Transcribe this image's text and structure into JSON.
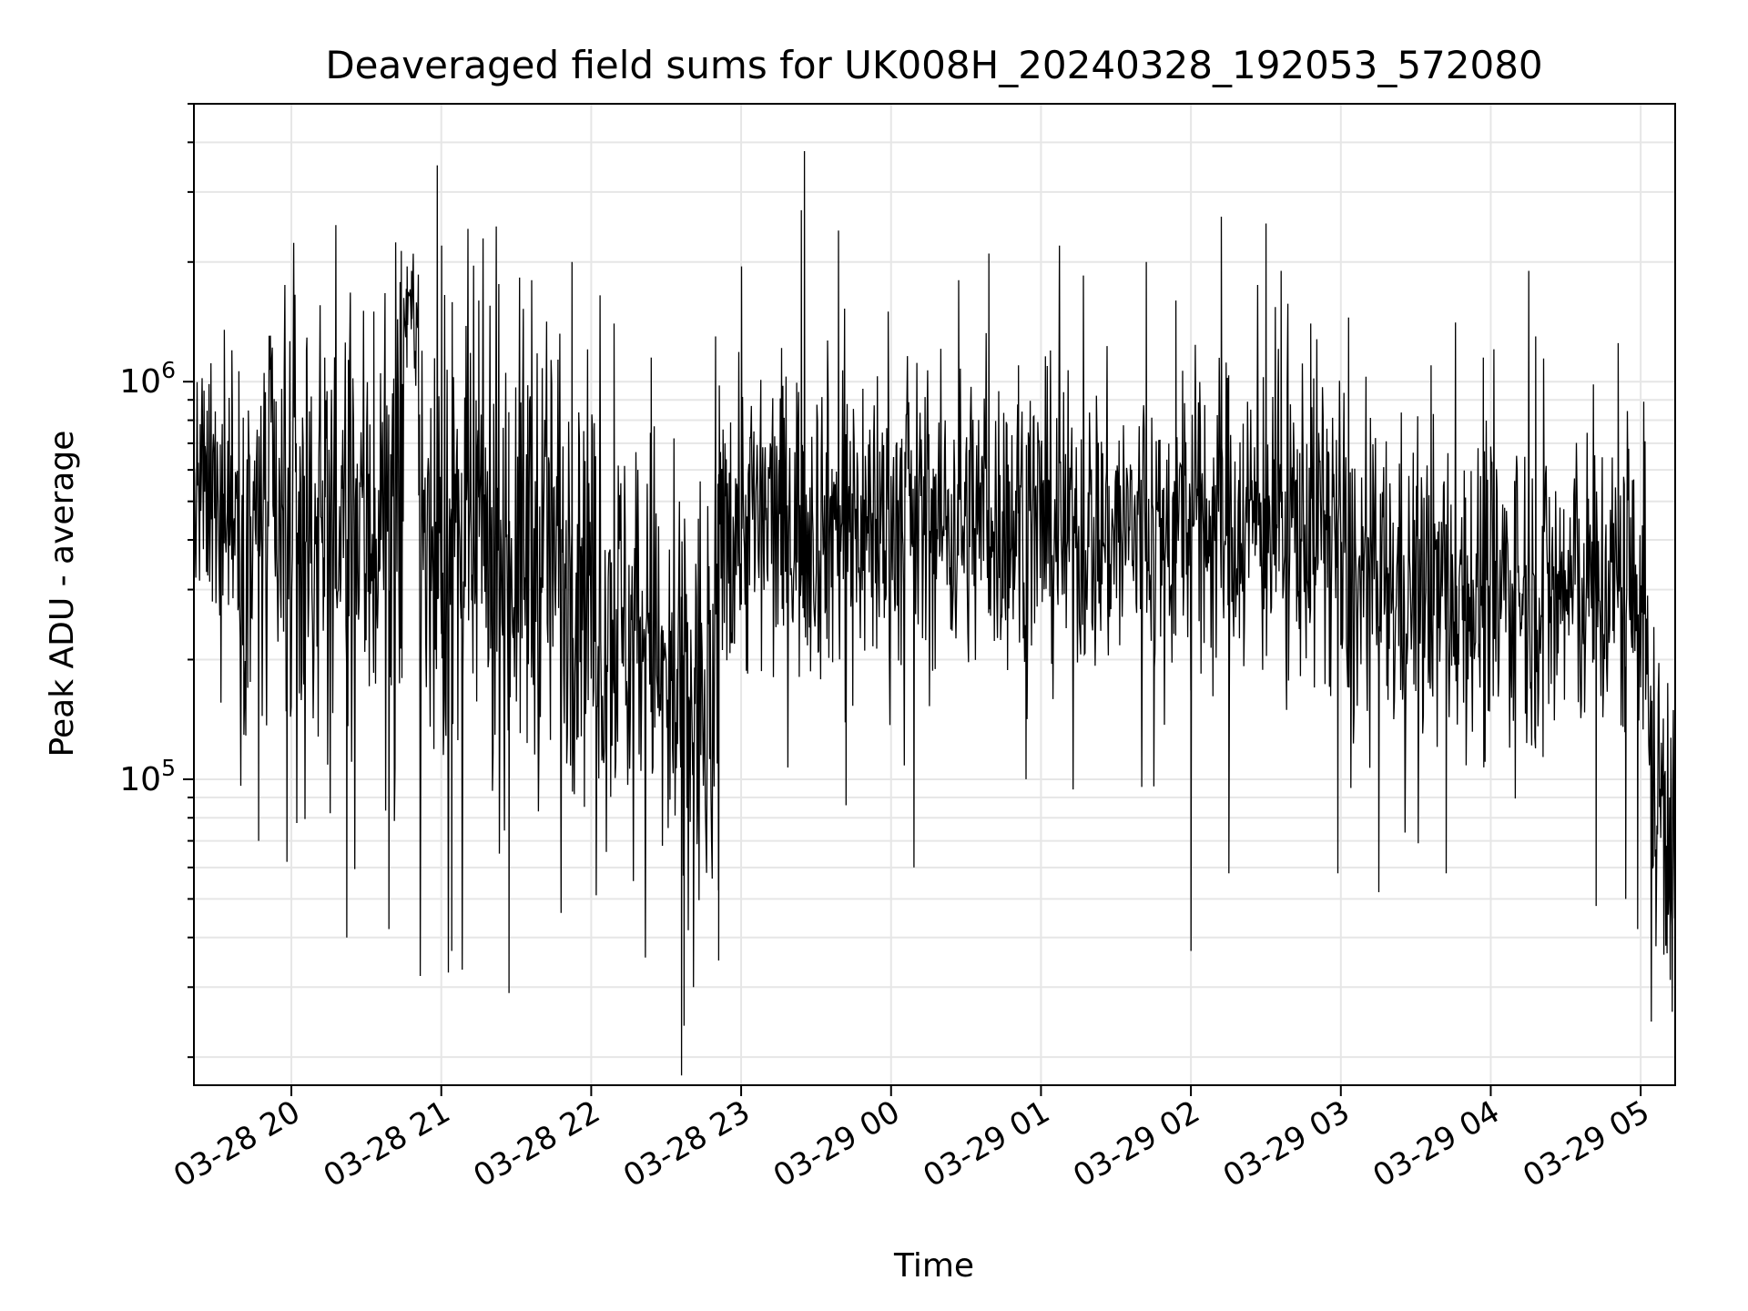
{
  "chart_data": {
    "type": "line",
    "title": "Deaveraged field sums for UK008H_20240328_192053_572080",
    "xlabel": "Time",
    "ylabel": "Peak ADU - average",
    "yscale": "log",
    "ylim": [
      17000,
      5000000
    ],
    "xlim_hours": [
      19.35,
      29.23
    ],
    "grid": true,
    "line_color": "#000000",
    "grid_color": "#e6e6e6",
    "x_ticks": [
      {
        "label": "03-28 20",
        "hour": 20
      },
      {
        "label": "03-28 21",
        "hour": 21
      },
      {
        "label": "03-28 22",
        "hour": 22
      },
      {
        "label": "03-28 23",
        "hour": 23
      },
      {
        "label": "03-29 00",
        "hour": 24
      },
      {
        "label": "03-29 01",
        "hour": 25
      },
      {
        "label": "03-29 02",
        "hour": 26
      },
      {
        "label": "03-29 03",
        "hour": 27
      },
      {
        "label": "03-29 04",
        "hour": 28
      },
      {
        "label": "03-29 05",
        "hour": 29
      }
    ],
    "y_major_ticks": [
      {
        "base": "10",
        "exp": "5",
        "value": 100000
      },
      {
        "base": "10",
        "exp": "6",
        "value": 1000000
      }
    ],
    "series": [
      {
        "name": "deaveraged field sum",
        "segments": [
          {
            "t0": 19.35,
            "t1": 19.65,
            "median": 500000,
            "spread": 0.32,
            "spikes": [
              [
                19.4,
                850000
              ],
              [
                19.47,
                280000
              ],
              [
                19.55,
                1350000
              ],
              [
                19.6,
                1200000
              ]
            ]
          },
          {
            "t0": 19.65,
            "t1": 20.75,
            "median": 420000,
            "spread": 0.58,
            "spikes": [
              [
                19.78,
                70000
              ],
              [
                19.97,
                62000
              ],
              [
                20.1,
                1200000
              ],
              [
                20.22,
                1150000
              ],
              [
                20.37,
                40000
              ],
              [
                20.55,
                1500000
              ],
              [
                20.65,
                42000
              ]
            ]
          },
          {
            "t0": 20.75,
            "t1": 20.85,
            "median": 1500000,
            "spread": 0.15,
            "spikes": [
              [
                20.77,
                1950000
              ],
              [
                20.8,
                1900000
              ]
            ]
          },
          {
            "t0": 20.85,
            "t1": 22.0,
            "median": 380000,
            "spread": 0.6,
            "spikes": [
              [
                20.86,
                32000
              ],
              [
                20.97,
                3500000
              ],
              [
                21.0,
                2200000
              ],
              [
                21.07,
                37000
              ],
              [
                21.25,
                1600000
              ],
              [
                21.45,
                29000
              ],
              [
                21.6,
                1800000
              ],
              [
                21.87,
                2000000
              ]
            ]
          },
          {
            "t0": 22.0,
            "t1": 22.45,
            "median": 250000,
            "spread": 0.5,
            "spikes": [
              [
                22.15,
                1400000
              ],
              [
                22.4,
                1150000
              ]
            ]
          },
          {
            "t0": 22.45,
            "t1": 22.85,
            "median": 150000,
            "spread": 0.6,
            "spikes": [
              [
                22.6,
                18000
              ],
              [
                22.62,
                24000
              ],
              [
                22.55,
                720000
              ],
              [
                22.68,
                30000
              ],
              [
                22.85,
                35000
              ],
              [
                22.83,
                1300000
              ]
            ]
          },
          {
            "t0": 22.85,
            "t1": 24.0,
            "median": 450000,
            "spread": 0.4,
            "spikes": [
              [
                23.0,
                1950000
              ],
              [
                23.4,
                2700000
              ],
              [
                23.42,
                3800000
              ],
              [
                23.65,
                2400000
              ],
              [
                23.7,
                86000
              ],
              [
                23.98,
                1500000
              ]
            ]
          },
          {
            "t0": 24.0,
            "t1": 25.0,
            "median": 450000,
            "spread": 0.38,
            "spikes": [
              [
                24.15,
                60000
              ],
              [
                24.45,
                1800000
              ],
              [
                24.65,
                2100000
              ],
              [
                24.85,
                1100000
              ],
              [
                24.9,
                100000
              ]
            ]
          },
          {
            "t0": 25.0,
            "t1": 26.0,
            "median": 420000,
            "spread": 0.38,
            "spikes": [
              [
                25.12,
                2200000
              ],
              [
                25.28,
                1850000
              ],
              [
                25.7,
                2000000
              ],
              [
                25.75,
                96000
              ],
              [
                25.9,
                1600000
              ],
              [
                26.0,
                37000
              ]
            ]
          },
          {
            "t0": 26.0,
            "t1": 27.0,
            "median": 450000,
            "spread": 0.4,
            "spikes": [
              [
                26.2,
                2600000
              ],
              [
                26.25,
                58000
              ],
              [
                26.5,
                2500000
              ],
              [
                26.6,
                1900000
              ],
              [
                26.8,
                1400000
              ],
              [
                26.98,
                58000
              ]
            ]
          },
          {
            "t0": 27.0,
            "t1": 28.0,
            "median": 300000,
            "spread": 0.4,
            "spikes": [
              [
                27.05,
                1450000
              ],
              [
                27.25,
                52000
              ],
              [
                27.6,
                1100000
              ],
              [
                27.7,
                58000
              ],
              [
                27.95,
                1150000
              ]
            ]
          },
          {
            "t0": 28.0,
            "t1": 29.05,
            "median": 300000,
            "spread": 0.4,
            "spikes": [
              [
                28.25,
                1900000
              ],
              [
                28.3,
                1300000
              ],
              [
                28.7,
                48000
              ],
              [
                28.85,
                1250000
              ],
              [
                28.9,
                50000
              ],
              [
                28.98,
                42000
              ]
            ]
          },
          {
            "t0": 29.05,
            "t1": 29.23,
            "median": 90000,
            "spread": 0.5,
            "spikes": [
              [
                29.1,
                38000
              ],
              [
                29.18,
                140000
              ],
              [
                29.21,
                26000
              ]
            ]
          }
        ]
      }
    ]
  }
}
